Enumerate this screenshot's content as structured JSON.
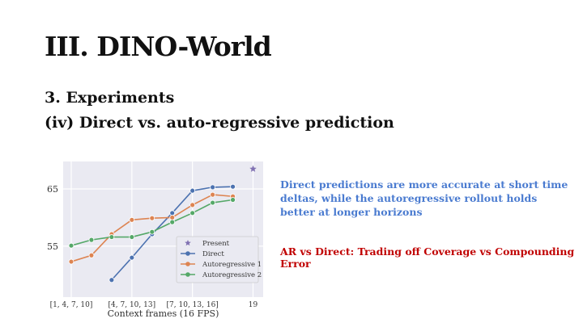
{
  "title": "III. DINO-World",
  "subtitle1": "3. Experiments",
  "subtitle2": "(iv) Direct vs. auto-regressive prediction",
  "note1": "Direct predictions are more accurate at short time deltas, while the autoregressive rollout holds better at longer horizons",
  "note2": "AR vs Direct: Trading off Coverage vs Compounding Error",
  "chart_data": {
    "type": "line",
    "xlabel": "Context frames (16 FPS)",
    "ylabel": "",
    "x": [
      0,
      1,
      2,
      3,
      4,
      5,
      6,
      7,
      8
    ],
    "xticks": [
      {
        "x": 0,
        "label": "[1, 4, 7, 10]"
      },
      {
        "x": 3,
        "label": "[4, 7, 10, 13]"
      },
      {
        "x": 6,
        "label": "[7, 10, 13, 16]"
      },
      {
        "x": 9,
        "label": "19"
      }
    ],
    "yticks": [
      55,
      65
    ],
    "xlim": [
      -0.4,
      9.5
    ],
    "ylim": [
      46.1,
      69.8
    ],
    "grid": true,
    "legend": "lower-right",
    "series": [
      {
        "name": "Direct",
        "color": "#4c72b0",
        "x": [
          2,
          3,
          4,
          5,
          6,
          7,
          8
        ],
        "values": [
          49.1,
          53.0,
          57.1,
          60.8,
          64.7,
          65.3,
          65.4
        ]
      },
      {
        "name": "Autoregressive 1",
        "color": "#dd8452",
        "x": [
          0,
          1,
          2,
          3,
          4,
          5,
          6,
          7,
          8
        ],
        "values": [
          52.3,
          53.4,
          57.1,
          59.6,
          59.9,
          60.0,
          62.2,
          64.0,
          63.7
        ]
      },
      {
        "name": "Autoregressive 2",
        "color": "#55a868",
        "x": [
          0,
          1,
          2,
          3,
          4,
          5,
          6,
          7,
          8
        ],
        "values": [
          55.1,
          56.1,
          56.6,
          56.6,
          57.5,
          59.2,
          60.8,
          62.6,
          63.1
        ]
      }
    ],
    "present": {
      "name": "Present",
      "color": "#8172b3",
      "x": 9,
      "value": 68.5
    }
  }
}
